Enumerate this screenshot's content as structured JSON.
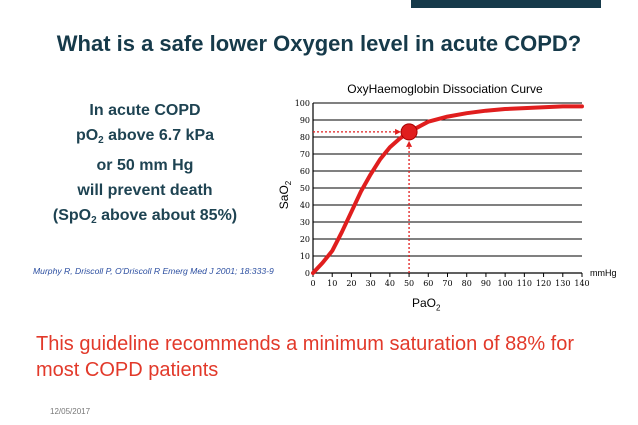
{
  "slide": {
    "title": "What is a safe lower Oxygen level in acute COPD?",
    "left_lines": {
      "line1": "In acute COPD",
      "line2_pre": "pO",
      "line2_sub": "2",
      "line2_post": " above 6.7 kPa",
      "line3": "or 50 mm Hg",
      "line4": "will prevent death",
      "line5_pre": "(SpO",
      "line5_sub": "2",
      "line5_post": " above about 85%)"
    },
    "citation": "Murphy R, Driscoll P, O'Driscoll R Emerg Med J 2001; 18:333-9",
    "footer_text": "This guideline recommends a minimum  saturation of 88% for most COPD patients",
    "date": "12/05/2017"
  },
  "colors": {
    "title": "#163a4a",
    "left_text": "#1e4352",
    "citation": "#2b4ea0",
    "curve": "#e01e1e",
    "footer": "#e2392a",
    "topbar": "#163a4a"
  },
  "chart_data": {
    "type": "line",
    "title": "OxyHaemoglobin Dissociation Curve",
    "ylabel_pre": "SaO",
    "ylabel_sub": "2",
    "xlabel_pre": "PaO",
    "xlabel_sub": "2",
    "x_unit": "mmHg",
    "xlim": [
      0,
      140
    ],
    "ylim": [
      0,
      100
    ],
    "x_ticks": [
      "0",
      "10",
      "20",
      "30",
      "40",
      "50",
      "60",
      "70",
      "80",
      "90",
      "100",
      "110",
      "120",
      "130",
      "140"
    ],
    "y_ticks": [
      "0",
      "10",
      "20",
      "30",
      "40",
      "50",
      "60",
      "70",
      "80",
      "90",
      "100"
    ],
    "grid": true,
    "series": [
      {
        "x": [
          0,
          5,
          10,
          15,
          20,
          25,
          30,
          35,
          40,
          45,
          50,
          55,
          60,
          70,
          80,
          90,
          100,
          110,
          120,
          130,
          140
        ],
        "y": [
          0,
          6,
          13,
          24,
          36,
          48,
          58,
          67,
          74,
          79,
          83,
          86,
          89,
          92,
          94,
          95.5,
          96.5,
          97,
          97.5,
          98,
          98
        ]
      }
    ],
    "highlight_point": {
      "x": 50,
      "y": 83
    },
    "annotation_line_to_x": 50,
    "annotation_line_to_y": 83
  }
}
